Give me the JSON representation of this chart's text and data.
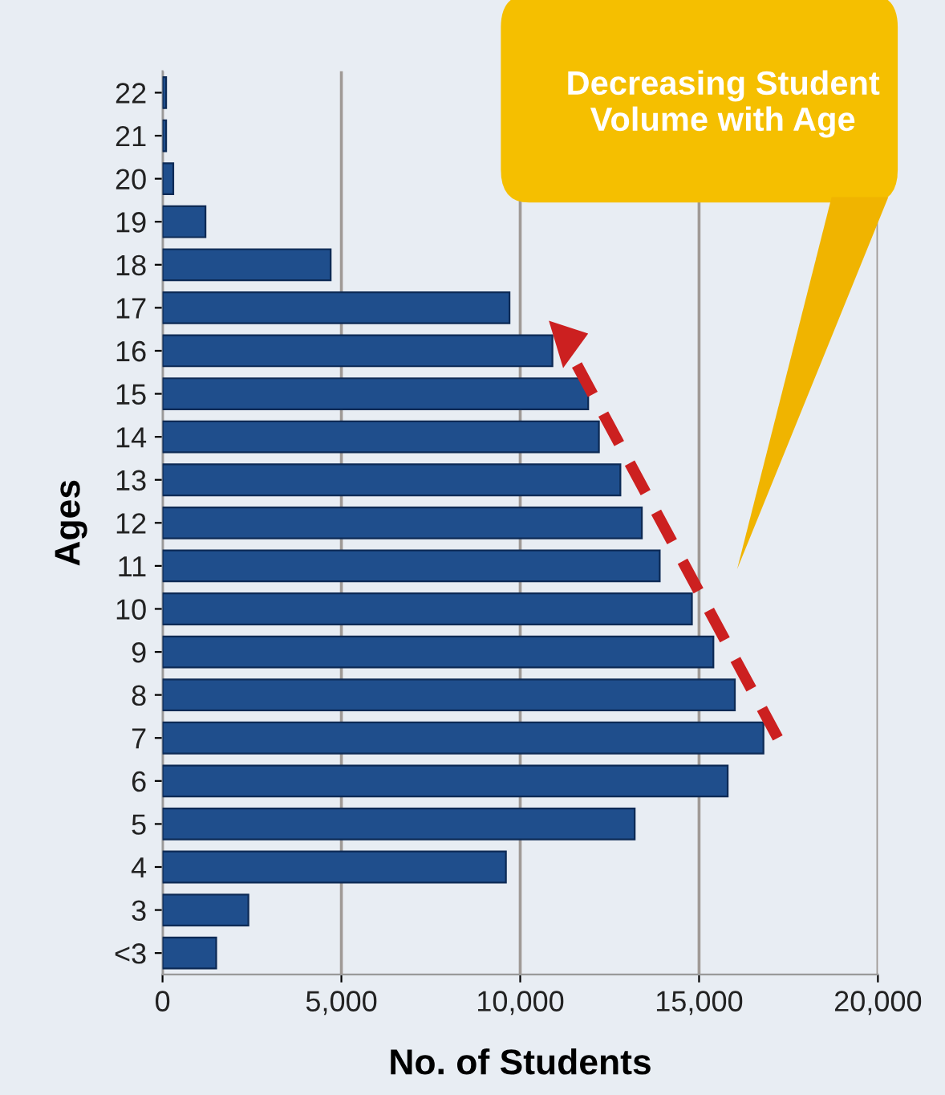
{
  "chart_data": {
    "type": "bar",
    "orientation": "horizontal",
    "xlabel": "No. of Students",
    "ylabel": "Ages",
    "categories": [
      "22",
      "21",
      "20",
      "19",
      "18",
      "17",
      "16",
      "15",
      "14",
      "13",
      "12",
      "11",
      "10",
      "9",
      "8",
      "7",
      "6",
      "5",
      "4",
      "3",
      "<3"
    ],
    "values": [
      100,
      100,
      300,
      1200,
      4700,
      9700,
      10900,
      11900,
      12200,
      12800,
      13400,
      13900,
      14800,
      15400,
      16000,
      16800,
      15800,
      13200,
      9600,
      2400,
      1500
    ],
    "color": "#1f4e8c",
    "xlim": [
      0,
      20000
    ],
    "xticks": [
      {
        "value": 0,
        "label": "0"
      },
      {
        "value": 5000,
        "label": "5,000"
      },
      {
        "value": 10000,
        "label": "10,000"
      },
      {
        "value": 15000,
        "label": "15,000"
      },
      {
        "value": 20000,
        "label": "20,000"
      }
    ],
    "grid": "x",
    "annotations": [
      "Decreasing Student Volume with Age"
    ]
  }
}
